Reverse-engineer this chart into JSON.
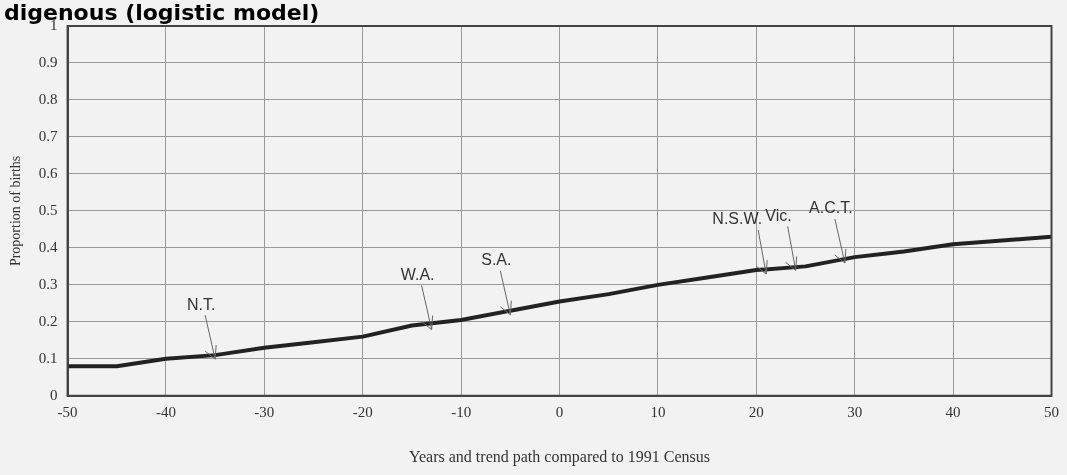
{
  "chart_data": {
    "type": "line",
    "title": "digenous (logistic model)",
    "xlabel": "Years and trend path compared to 1991 Census",
    "ylabel": "Proportion of births",
    "x": [
      -50,
      -45,
      -40,
      -35,
      -30,
      -25,
      -20,
      -15,
      -10,
      -5,
      0,
      5,
      10,
      15,
      20,
      25,
      30,
      35,
      40,
      45,
      50
    ],
    "series": [
      {
        "color": "#222222",
        "values": [
          0.08,
          0.08,
          0.1,
          0.11,
          0.13,
          0.145,
          0.16,
          0.19,
          0.205,
          0.23,
          0.255,
          0.275,
          0.3,
          0.32,
          0.34,
          0.35,
          0.375,
          0.39,
          0.41,
          0.42,
          0.43
        ]
      }
    ],
    "xlim": [
      -50,
      50
    ],
    "xticks": [
      -50,
      -40,
      -30,
      -20,
      -10,
      0,
      10,
      20,
      30,
      40,
      50
    ],
    "ylim": [
      0,
      1
    ],
    "yticks": [
      0,
      0.1,
      0.2,
      0.3,
      0.4,
      0.5,
      0.6,
      0.7,
      0.8,
      0.9,
      1
    ],
    "grid": true,
    "legend": false,
    "marker": "none",
    "line_style": "solid",
    "annotations": [
      {
        "text": "N.T.",
        "x": -35,
        "y": 0.11
      },
      {
        "text": "W.A.",
        "x": -13,
        "y": 0.19
      },
      {
        "text": "S.A.",
        "x": -5,
        "y": 0.23
      },
      {
        "text": "N.S.W.",
        "x": 21,
        "y": 0.34
      },
      {
        "text": "Vic.",
        "x": 24,
        "y": 0.35
      },
      {
        "text": "A.C.T.",
        "x": 29,
        "y": 0.37
      }
    ]
  }
}
